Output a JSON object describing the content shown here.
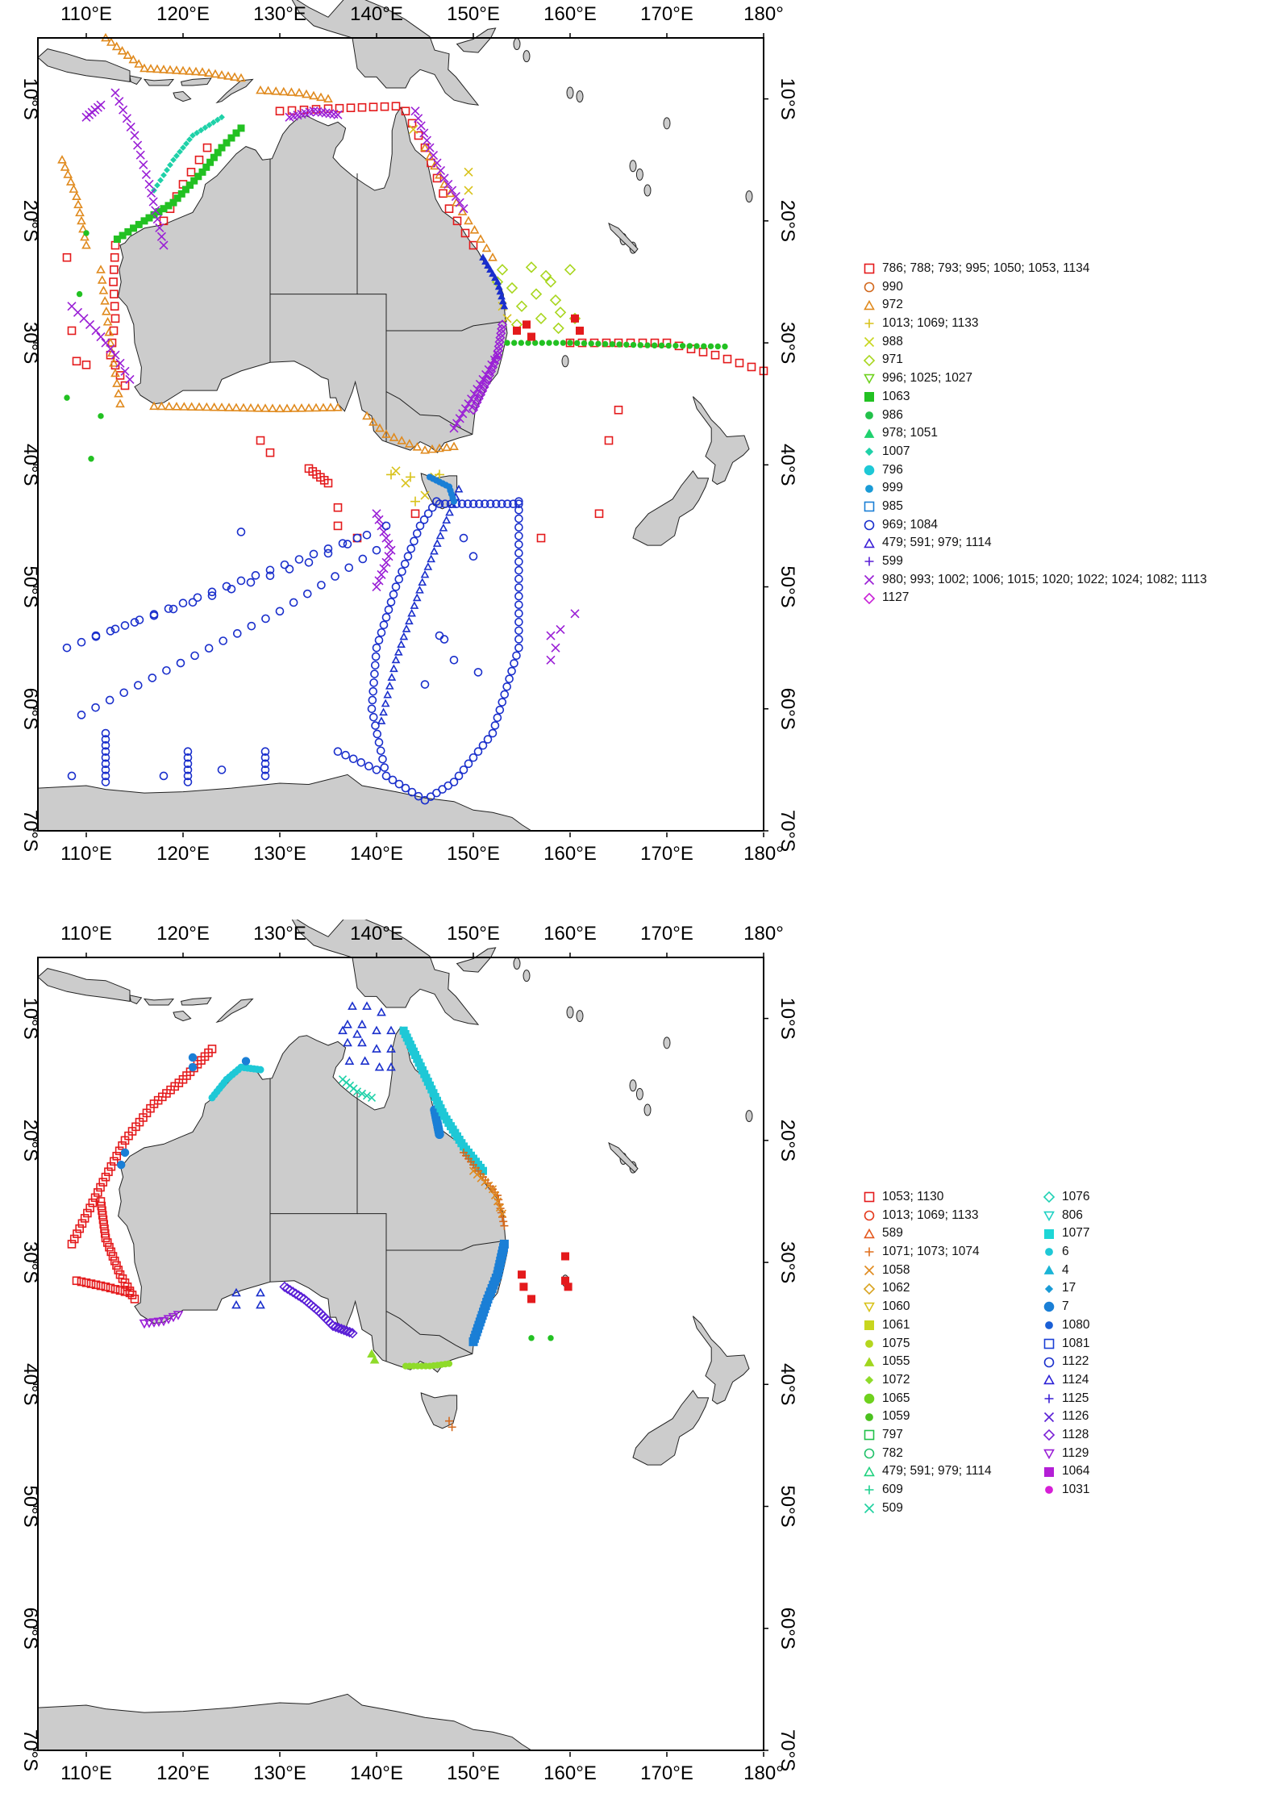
{
  "map_top": {
    "x_ticks": [
      "110°E",
      "120°E",
      "130°E",
      "140°E",
      "150°E",
      "160°E",
      "170°E",
      "180°"
    ],
    "y_ticks": [
      "10°S",
      "20°S",
      "30°S",
      "40°S",
      "50°S",
      "60°S",
      "70°S"
    ]
  },
  "map_bottom": {
    "x_ticks": [
      "110°E",
      "120°E",
      "130°E",
      "140°E",
      "150°E",
      "160°E",
      "170°E",
      "180°"
    ],
    "y_ticks": [
      "10°S",
      "20°S",
      "30°S",
      "40°S",
      "50°S",
      "60°S",
      "70°S"
    ]
  },
  "colors": {
    "land": "#cccccc",
    "coast": "#222222",
    "frame": "#000000",
    "background": "#ffffff",
    "red": "#e41a1c",
    "dark_orange": "#d2691e",
    "orange": "#e08a1e",
    "yellow": "#d8c21a",
    "yellowgreen": "#a8d61e",
    "lightgreen": "#8fdb2a",
    "green": "#22c122",
    "teal": "#1fd1a8",
    "cyan": "#1ec8d6",
    "blue": "#1a7fd6",
    "navy": "#1a2fcc",
    "violet": "#5a1fd6",
    "purple": "#9a1fd6",
    "magenta": "#d61fd6"
  },
  "legend_top": [
    {
      "label": "786; 788; 793; 995; 1050; 1053, 1134",
      "symbol": "square",
      "color": "#e41a1c"
    },
    {
      "label": "990",
      "symbol": "circle",
      "color": "#d2691e"
    },
    {
      "label": "972",
      "symbol": "triangle",
      "color": "#e08a1e"
    },
    {
      "label": "1013; 1069; 1133",
      "symbol": "plus",
      "color": "#d8c21a"
    },
    {
      "label": "988",
      "symbol": "x",
      "color": "#c8d61e"
    },
    {
      "label": "971",
      "symbol": "diamond",
      "color": "#a8d61e"
    },
    {
      "label": "996; 1025; 1027",
      "symbol": "triangle-down",
      "color": "#6fd11e"
    },
    {
      "label": "1063",
      "symbol": "filled-square",
      "color": "#22c122"
    },
    {
      "label": "986",
      "symbol": "filled-circle",
      "color": "#22c14a"
    },
    {
      "label": "978; 1051",
      "symbol": "filled-triangle",
      "color": "#1fd16e"
    },
    {
      "label": "1007",
      "symbol": "filled-diamond",
      "color": "#1fd1a8"
    },
    {
      "label": "796",
      "symbol": "big-filled-circle",
      "color": "#1ec8d6"
    },
    {
      "label": "999",
      "symbol": "filled-circle",
      "color": "#1a9bd6"
    },
    {
      "label": "985",
      "symbol": "square",
      "color": "#1a7fd6"
    },
    {
      "label": "969; 1084",
      "symbol": "circle",
      "color": "#1a2fcc"
    },
    {
      "label": "479; 591; 979; 1114",
      "symbol": "triangle",
      "color": "#3a1fd6"
    },
    {
      "label": "599",
      "symbol": "plus",
      "color": "#5a1fd6"
    },
    {
      "label": "980; 993; 1002; 1006; 1015; 1020; 1022; 1024; 1082; 1113",
      "symbol": "x",
      "color": "#9a1fd6"
    },
    {
      "label": "1127",
      "symbol": "diamond",
      "color": "#c81fd6"
    }
  ],
  "legend_bottom_col1": [
    {
      "label": "1053; 1130",
      "symbol": "square",
      "color": "#e41a1c"
    },
    {
      "label": "1013; 1069; 1133",
      "symbol": "circle",
      "color": "#e4391c"
    },
    {
      "label": "589",
      "symbol": "triangle",
      "color": "#e4571c"
    },
    {
      "label": "1071; 1073; 1074",
      "symbol": "plus",
      "color": "#e0701e"
    },
    {
      "label": "1058",
      "symbol": "x",
      "color": "#e08a1e"
    },
    {
      "label": "1062",
      "symbol": "diamond",
      "color": "#d8a21e"
    },
    {
      "label": "1060",
      "symbol": "triangle-down",
      "color": "#d8c21a"
    },
    {
      "label": "1061",
      "symbol": "filled-square",
      "color": "#c8d61e"
    },
    {
      "label": "1075",
      "symbol": "filled-circle",
      "color": "#b4d61e"
    },
    {
      "label": "1055",
      "symbol": "filled-triangle",
      "color": "#a0d61e"
    },
    {
      "label": "1072",
      "symbol": "filled-diamond",
      "color": "#8fdb2a"
    },
    {
      "label": "1065",
      "symbol": "big-filled-circle",
      "color": "#6fd11e"
    },
    {
      "label": "1059",
      "symbol": "filled-circle",
      "color": "#4ac11e"
    },
    {
      "label": "797",
      "symbol": "square",
      "color": "#22c14a"
    },
    {
      "label": "782",
      "symbol": "circle",
      "color": "#22c16a"
    },
    {
      "label": "479; 591; 979; 1114",
      "symbol": "triangle",
      "color": "#1fd17e"
    },
    {
      "label": "609",
      "symbol": "plus",
      "color": "#1fd190"
    },
    {
      "label": "509",
      "symbol": "x",
      "color": "#1fd1a0"
    }
  ],
  "legend_bottom_col2": [
    {
      "label": "1076",
      "symbol": "diamond",
      "color": "#1fd1b4"
    },
    {
      "label": "806",
      "symbol": "triangle-down",
      "color": "#1fd1c4"
    },
    {
      "label": "1077",
      "symbol": "filled-square",
      "color": "#1ed6d6"
    },
    {
      "label": "6",
      "symbol": "filled-circle",
      "color": "#1ec8d6"
    },
    {
      "label": "4",
      "symbol": "filled-triangle",
      "color": "#1ab4d6"
    },
    {
      "label": "17",
      "symbol": "filled-diamond",
      "color": "#1a9bd6"
    },
    {
      "label": "7",
      "symbol": "big-filled-circle",
      "color": "#1a7fd6"
    },
    {
      "label": "1080",
      "symbol": "filled-circle",
      "color": "#1a5fd6"
    },
    {
      "label": "1081",
      "symbol": "square",
      "color": "#1a3fd6"
    },
    {
      "label": "1122",
      "symbol": "circle",
      "color": "#1a2fcc"
    },
    {
      "label": "1124",
      "symbol": "triangle",
      "color": "#2a1fd6"
    },
    {
      "label": "1125",
      "symbol": "plus",
      "color": "#3a1fd6"
    },
    {
      "label": "1126",
      "symbol": "x",
      "color": "#5a1fd6"
    },
    {
      "label": "1128",
      "symbol": "diamond",
      "color": "#7a1fd6"
    },
    {
      "label": "1129",
      "symbol": "triangle-down",
      "color": "#9a1fd6"
    },
    {
      "label": "1064",
      "symbol": "filled-square",
      "color": "#b41fd6"
    },
    {
      "label": "1031",
      "symbol": "filled-circle",
      "color": "#d61fd6"
    }
  ]
}
